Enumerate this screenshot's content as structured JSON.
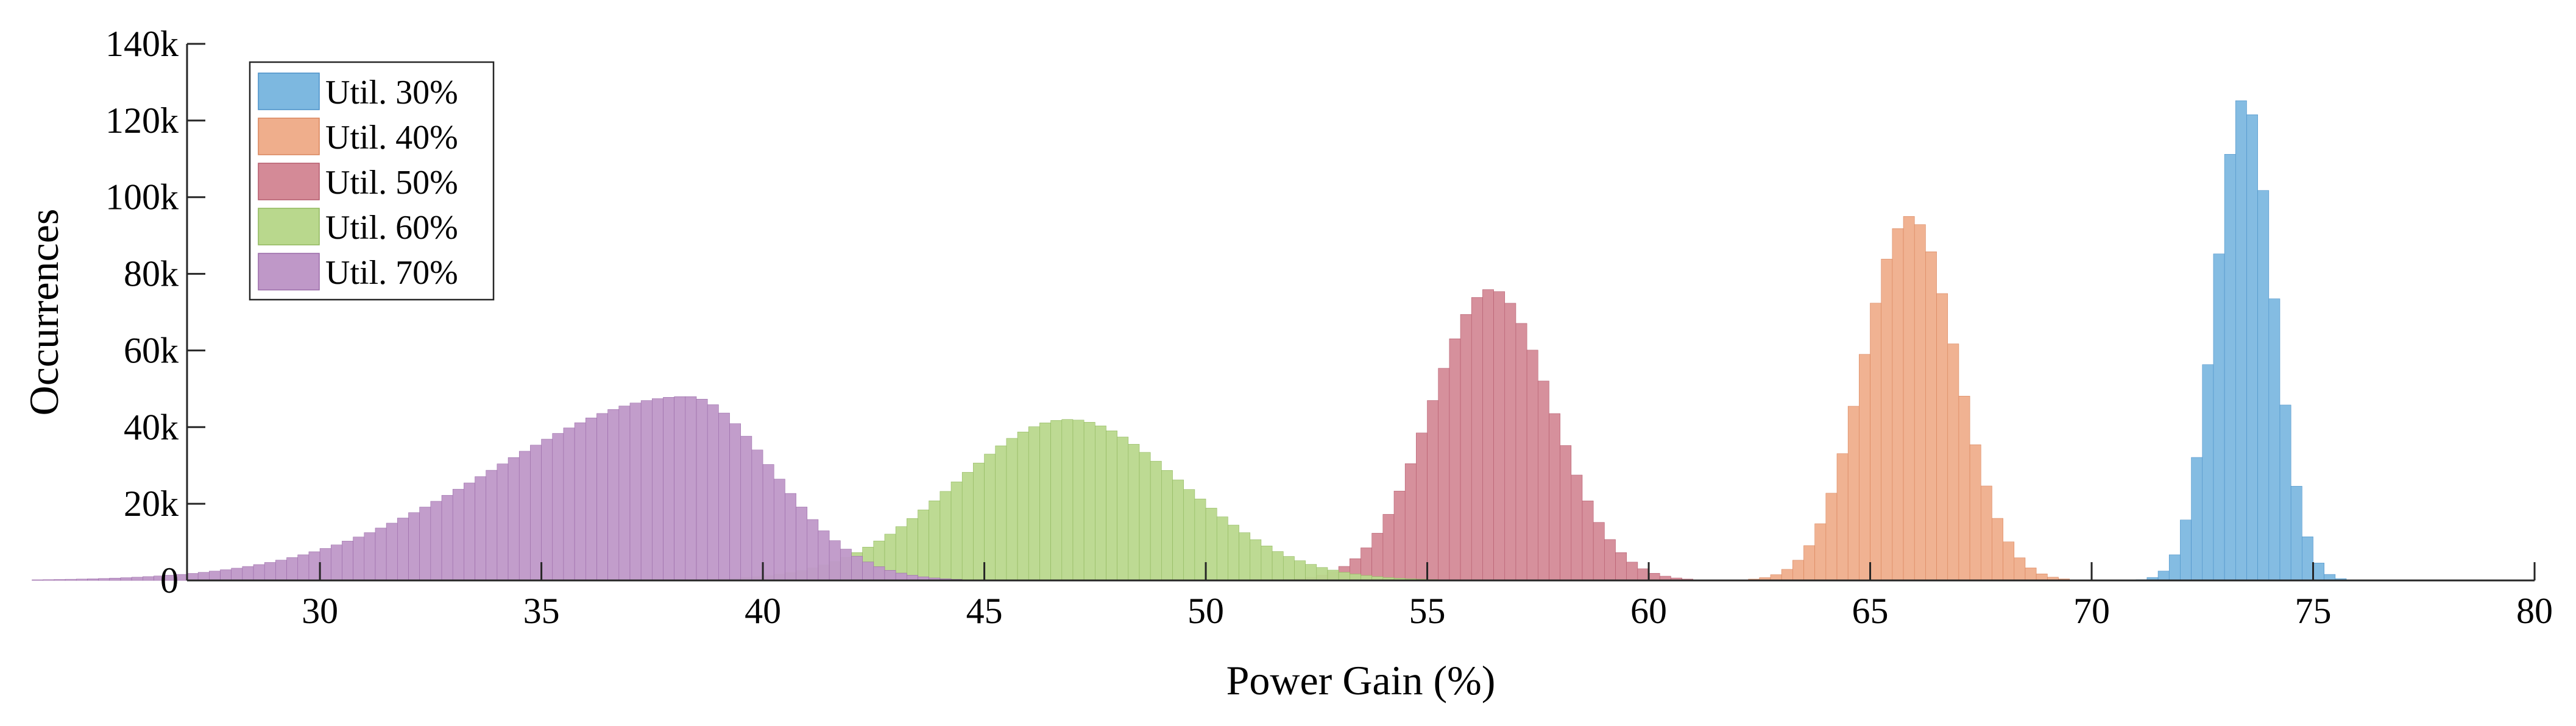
{
  "chart_data": {
    "type": "histogram",
    "xlabel": "Power Gain (%)",
    "ylabel": "Occurrences",
    "xlim": [
      27,
      80
    ],
    "ylim": [
      0,
      140000
    ],
    "xticks": [
      30,
      35,
      40,
      45,
      50,
      55,
      60,
      65,
      70,
      75,
      80
    ],
    "xtick_labels": [
      "30",
      "35",
      "40",
      "45",
      "50",
      "55",
      "60",
      "65",
      "70",
      "75",
      "80"
    ],
    "yticks": [
      0,
      20000,
      40000,
      60000,
      80000,
      100000,
      120000,
      140000
    ],
    "ytick_labels": [
      "0",
      "20k",
      "40k",
      "60k",
      "80k",
      "100k",
      "120k",
      "140k"
    ],
    "bin_width": 0.25,
    "legend_position": "top-left",
    "grid": false,
    "series": [
      {
        "name": "Util. 30%",
        "color": "#7db8e0",
        "stroke": "#4a90c8",
        "mean": 73.45,
        "sd": 0.65,
        "peak": 126000,
        "skew": 0
      },
      {
        "name": "Util. 40%",
        "color": "#efae8c",
        "stroke": "#d9835a",
        "mean": 65.9,
        "sd": 1.05,
        "peak": 95000,
        "skew": 0
      },
      {
        "name": "Util. 50%",
        "color": "#d48a97",
        "stroke": "#b55a6c",
        "mean": 56.45,
        "sd": 1.35,
        "peak": 76000,
        "skew": 0
      },
      {
        "name": "Util. 60%",
        "color": "#b9d88d",
        "stroke": "#8fb75c",
        "mean": 46.9,
        "sd": 2.55,
        "peak": 42000,
        "skew": 0
      },
      {
        "name": "Util. 70%",
        "color": "#bf98c8",
        "stroke": "#9a6aa8",
        "mean": 38.3,
        "sd": 1.9,
        "peak": 48000,
        "skew": 2.3
      }
    ]
  }
}
